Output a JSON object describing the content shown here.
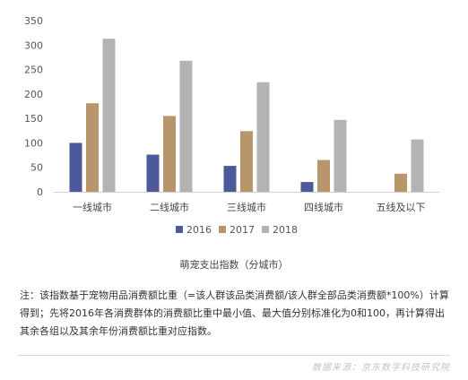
{
  "chart_data": {
    "type": "bar",
    "categories": [
      "一线城市",
      "二线城市",
      "三线城市",
      "四线城市",
      "五线及以下"
    ],
    "series": [
      {
        "name": "2016",
        "values": [
          100,
          76,
          53,
          20,
          null
        ],
        "color": "#4d5a99"
      },
      {
        "name": "2017",
        "values": [
          181,
          155,
          124,
          65,
          37
        ],
        "color": "#b8956a"
      },
      {
        "name": "2018",
        "values": [
          313,
          268,
          224,
          147,
          107
        ],
        "color": "#b3b3b3"
      }
    ],
    "y_ticks": [
      "0",
      "50",
      "100",
      "150",
      "200",
      "250",
      "300",
      "350"
    ],
    "ylim": [
      0,
      350
    ],
    "grid": false,
    "legend_position": "bottom"
  },
  "title": "萌宠支出指数（分城市）",
  "note": "注：该指数基于宠物用品消费额比重（=该人群该品类消费额/该人群全部品类消费额*100%）计算得到；先将2016年各消费群体的消费额比重中最小值、最大值分别标准化为0和100，再计算得出其余各组以及其余年份消费额比重对应指数。",
  "source": "数据来源：京东数字科技研究院"
}
